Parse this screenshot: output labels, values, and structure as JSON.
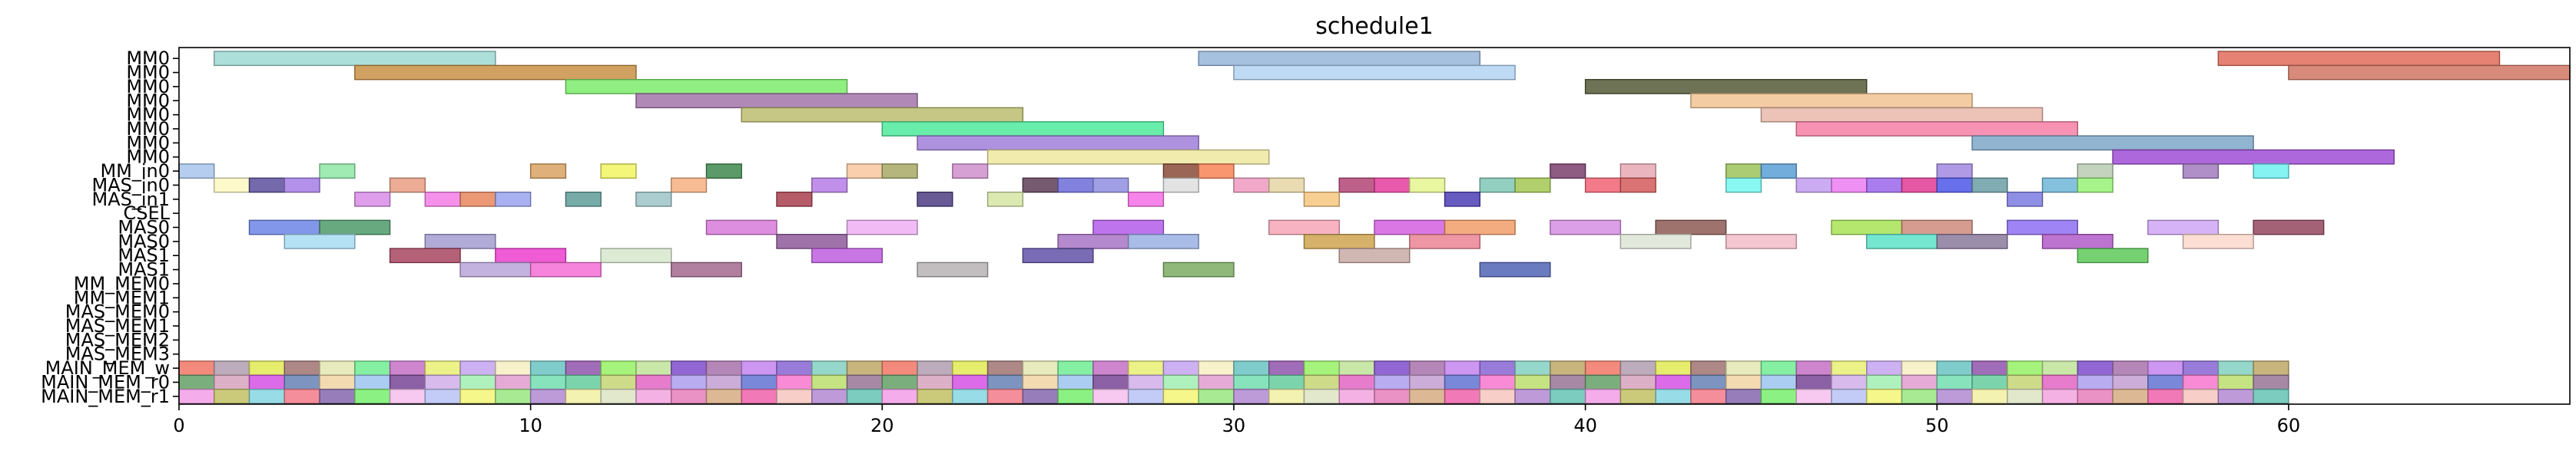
{
  "chart_data": {
    "type": "gantt",
    "title": "schedule1",
    "xlabel": "",
    "ylabel": "",
    "xlim": [
      0,
      68
    ],
    "xticks": [
      0,
      10,
      20,
      30,
      40,
      50,
      60
    ],
    "grid": false,
    "legend": "none",
    "rows": [
      "MM0",
      "MM0",
      "MM0",
      "MM0",
      "MM0",
      "MM0",
      "MM0",
      "MM0",
      "MM_in0",
      "MAS_in0",
      "MAS_in1",
      "CSEL",
      "MAS0",
      "MAS0",
      "MAS1",
      "MAS1",
      "MM_MEM0",
      "MM_MEM1",
      "MAS_MEM0",
      "MAS_MEM1",
      "MAS_MEM2",
      "MAS_MEM3",
      "MAIN_MEM_w",
      "MAIN_MEM_r0",
      "MAIN_MEM_r1"
    ],
    "tasks": [
      {
        "row": 0,
        "start": 1,
        "end": 9,
        "color": "#9ed9d2"
      },
      {
        "row": 0,
        "start": 29,
        "end": 37,
        "color": "#97b5db"
      },
      {
        "row": 0,
        "start": 58,
        "end": 66,
        "color": "#e06c5c"
      },
      {
        "row": 1,
        "start": 5,
        "end": 13,
        "color": "#c99045"
      },
      {
        "row": 1,
        "start": 30,
        "end": 38,
        "color": "#b3d3f3"
      },
      {
        "row": 1,
        "start": 60,
        "end": 68,
        "color": "#d27764"
      },
      {
        "row": 2,
        "start": 11,
        "end": 19,
        "color": "#7cec6b"
      },
      {
        "row": 2,
        "start": 40,
        "end": 48,
        "color": "#545a36"
      },
      {
        "row": 3,
        "start": 13,
        "end": 21,
        "color": "#a274a9"
      },
      {
        "row": 3,
        "start": 43,
        "end": 51,
        "color": "#f2c393"
      },
      {
        "row": 4,
        "start": 16,
        "end": 24,
        "color": "#bcbd6e"
      },
      {
        "row": 4,
        "start": 45,
        "end": 53,
        "color": "#e9b8a9"
      },
      {
        "row": 5,
        "start": 20,
        "end": 28,
        "color": "#4eea9c"
      },
      {
        "row": 5,
        "start": 46,
        "end": 54,
        "color": "#f77fa6"
      },
      {
        "row": 6,
        "start": 21,
        "end": 29,
        "color": "#a17fd9"
      },
      {
        "row": 6,
        "start": 51,
        "end": 59,
        "color": "#7ea7c9"
      },
      {
        "row": 7,
        "start": 23,
        "end": 31,
        "color": "#eee8a0"
      },
      {
        "row": 7,
        "start": 55,
        "end": 63,
        "color": "#9f4fd6"
      },
      {
        "row": 8,
        "start": 0,
        "end": 1,
        "color": "#a8c6ec"
      },
      {
        "row": 8,
        "start": 4,
        "end": 5,
        "color": "#8ee8a6"
      },
      {
        "row": 8,
        "start": 10,
        "end": 11,
        "color": "#d9a261"
      },
      {
        "row": 8,
        "start": 12,
        "end": 13,
        "color": "#f1f560"
      },
      {
        "row": 8,
        "start": 15,
        "end": 16,
        "color": "#3f8a4f"
      },
      {
        "row": 8,
        "start": 19,
        "end": 20,
        "color": "#f8c7a0"
      },
      {
        "row": 8,
        "start": 20,
        "end": 21,
        "color": "#a7a965"
      },
      {
        "row": 8,
        "start": 22,
        "end": 23,
        "color": "#cf8fce"
      },
      {
        "row": 8,
        "start": 28,
        "end": 29,
        "color": "#8a4b37"
      },
      {
        "row": 8,
        "start": 29,
        "end": 30,
        "color": "#f88256"
      },
      {
        "row": 8,
        "start": 39,
        "end": 40,
        "color": "#7a3f6c"
      },
      {
        "row": 8,
        "start": 41,
        "end": 42,
        "color": "#e6a8b3"
      },
      {
        "row": 8,
        "start": 44,
        "end": 45,
        "color": "#9ec35c"
      },
      {
        "row": 8,
        "start": 45,
        "end": 46,
        "color": "#5a9fd5"
      },
      {
        "row": 8,
        "start": 50,
        "end": 51,
        "color": "#a288e2"
      },
      {
        "row": 8,
        "start": 54,
        "end": 55,
        "color": "#b8cbb3"
      },
      {
        "row": 8,
        "start": 57,
        "end": 58,
        "color": "#a27bbf"
      },
      {
        "row": 8,
        "start": 59,
        "end": 60,
        "color": "#6ef1f0"
      },
      {
        "row": 9,
        "start": 1,
        "end": 2,
        "color": "#fdf8c2"
      },
      {
        "row": 9,
        "start": 2,
        "end": 3,
        "color": "#5a4f9c"
      },
      {
        "row": 9,
        "start": 3,
        "end": 4,
        "color": "#a57ee6"
      },
      {
        "row": 9,
        "start": 6,
        "end": 7,
        "color": "#e99d82"
      },
      {
        "row": 9,
        "start": 14,
        "end": 15,
        "color": "#f7b081"
      },
      {
        "row": 9,
        "start": 18,
        "end": 19,
        "color": "#b57de6"
      },
      {
        "row": 9,
        "start": 24,
        "end": 25,
        "color": "#5e3e57"
      },
      {
        "row": 9,
        "start": 25,
        "end": 26,
        "color": "#6c6cd8"
      },
      {
        "row": 9,
        "start": 26,
        "end": 27,
        "color": "#8f8ee0"
      },
      {
        "row": 9,
        "start": 28,
        "end": 29,
        "color": "#dfdede"
      },
      {
        "row": 9,
        "start": 30,
        "end": 31,
        "color": "#f09ac0"
      },
      {
        "row": 9,
        "start": 31,
        "end": 32,
        "color": "#e6d6a4"
      },
      {
        "row": 9,
        "start": 33,
        "end": 34,
        "color": "#b34575"
      },
      {
        "row": 9,
        "start": 34,
        "end": 35,
        "color": "#e63d9e"
      },
      {
        "row": 9,
        "start": 35,
        "end": 36,
        "color": "#e4f68f"
      },
      {
        "row": 9,
        "start": 37,
        "end": 38,
        "color": "#7fc7b5"
      },
      {
        "row": 9,
        "start": 38,
        "end": 39,
        "color": "#a3c853"
      },
      {
        "row": 9,
        "start": 40,
        "end": 41,
        "color": "#f16374"
      },
      {
        "row": 9,
        "start": 41,
        "end": 42,
        "color": "#d45b5b"
      },
      {
        "row": 9,
        "start": 44,
        "end": 45,
        "color": "#75f7f0"
      },
      {
        "row": 9,
        "start": 46,
        "end": 47,
        "color": "#c29ef0"
      },
      {
        "row": 9,
        "start": 47,
        "end": 48,
        "color": "#ec7df2"
      },
      {
        "row": 9,
        "start": 48,
        "end": 49,
        "color": "#9b66eb"
      },
      {
        "row": 9,
        "start": 49,
        "end": 50,
        "color": "#e03b94"
      },
      {
        "row": 9,
        "start": 50,
        "end": 51,
        "color": "#4e57e8"
      },
      {
        "row": 9,
        "start": 51,
        "end": 52,
        "color": "#6a9ea4"
      },
      {
        "row": 9,
        "start": 53,
        "end": 54,
        "color": "#6fb6d6"
      },
      {
        "row": 9,
        "start": 54,
        "end": 55,
        "color": "#96f275"
      },
      {
        "row": 10,
        "start": 5,
        "end": 6,
        "color": "#d88de8"
      },
      {
        "row": 10,
        "start": 7,
        "end": 8,
        "color": "#f47ee8"
      },
      {
        "row": 10,
        "start": 8,
        "end": 9,
        "color": "#e8865d"
      },
      {
        "row": 10,
        "start": 9,
        "end": 10,
        "color": "#99a3ee"
      },
      {
        "row": 10,
        "start": 11,
        "end": 12,
        "color": "#5e9c99"
      },
      {
        "row": 10,
        "start": 13,
        "end": 14,
        "color": "#9ec4c8"
      },
      {
        "row": 10,
        "start": 17,
        "end": 18,
        "color": "#a8404e"
      },
      {
        "row": 10,
        "start": 21,
        "end": 22,
        "color": "#4d3d82"
      },
      {
        "row": 10,
        "start": 23,
        "end": 24,
        "color": "#d6e6a4"
      },
      {
        "row": 10,
        "start": 27,
        "end": 28,
        "color": "#f56fe6"
      },
      {
        "row": 10,
        "start": 32,
        "end": 33,
        "color": "#f7c780"
      },
      {
        "row": 10,
        "start": 36,
        "end": 37,
        "color": "#4c3db5"
      },
      {
        "row": 10,
        "start": 52,
        "end": 53,
        "color": "#7b7be0"
      },
      {
        "row": 12,
        "start": 2,
        "end": 4,
        "color": "#6c84e6"
      },
      {
        "row": 12,
        "start": 4,
        "end": 6,
        "color": "#4e9a6a"
      },
      {
        "row": 12,
        "start": 15,
        "end": 17,
        "color": "#d77ad8"
      },
      {
        "row": 12,
        "start": 19,
        "end": 21,
        "color": "#eeb0f5"
      },
      {
        "row": 12,
        "start": 26,
        "end": 28,
        "color": "#b25cea"
      },
      {
        "row": 12,
        "start": 31,
        "end": 33,
        "color": "#f7a6b8"
      },
      {
        "row": 12,
        "start": 34,
        "end": 36,
        "color": "#d45fe0"
      },
      {
        "row": 12,
        "start": 36,
        "end": 38,
        "color": "#f19e68"
      },
      {
        "row": 12,
        "start": 39,
        "end": 41,
        "color": "#d58ee3"
      },
      {
        "row": 12,
        "start": 42,
        "end": 44,
        "color": "#8e5a54"
      },
      {
        "row": 12,
        "start": 47,
        "end": 49,
        "color": "#a8e255"
      },
      {
        "row": 12,
        "start": 49,
        "end": 51,
        "color": "#cf8b7c"
      },
      {
        "row": 12,
        "start": 52,
        "end": 54,
        "color": "#8d6ef2"
      },
      {
        "row": 12,
        "start": 56,
        "end": 58,
        "color": "#cfa6f5"
      },
      {
        "row": 12,
        "start": 59,
        "end": 61,
        "color": "#93465e"
      },
      {
        "row": 13,
        "start": 3,
        "end": 5,
        "color": "#a8dcf3"
      },
      {
        "row": 13,
        "start": 7,
        "end": 9,
        "color": "#a29cd0"
      },
      {
        "row": 13,
        "start": 17,
        "end": 19,
        "color": "#8e5a9a"
      },
      {
        "row": 13,
        "start": 25,
        "end": 27,
        "color": "#a874c4"
      },
      {
        "row": 13,
        "start": 27,
        "end": 29,
        "color": "#9ab0e4"
      },
      {
        "row": 13,
        "start": 32,
        "end": 34,
        "color": "#cfa34f"
      },
      {
        "row": 13,
        "start": 35,
        "end": 37,
        "color": "#eb8494"
      },
      {
        "row": 13,
        "start": 41,
        "end": 43,
        "color": "#dde5d6"
      },
      {
        "row": 13,
        "start": 44,
        "end": 46,
        "color": "#f2bcc8"
      },
      {
        "row": 13,
        "start": 48,
        "end": 50,
        "color": "#5de3c9"
      },
      {
        "row": 13,
        "start": 50,
        "end": 52,
        "color": "#8a7a9c"
      },
      {
        "row": 13,
        "start": 53,
        "end": 55,
        "color": "#b25ac8"
      },
      {
        "row": 13,
        "start": 57,
        "end": 59,
        "color": "#fbd8cb"
      },
      {
        "row": 14,
        "start": 6,
        "end": 8,
        "color": "#a84660"
      },
      {
        "row": 14,
        "start": 9,
        "end": 11,
        "color": "#ec40cf"
      },
      {
        "row": 14,
        "start": 12,
        "end": 14,
        "color": "#d7e8cd"
      },
      {
        "row": 14,
        "start": 18,
        "end": 20,
        "color": "#c05ee0"
      },
      {
        "row": 14,
        "start": 24,
        "end": 26,
        "color": "#6351a8"
      },
      {
        "row": 14,
        "start": 33,
        "end": 35,
        "color": "#c9aaa4"
      },
      {
        "row": 14,
        "start": 54,
        "end": 56,
        "color": "#5ec95a"
      },
      {
        "row": 15,
        "start": 8,
        "end": 10,
        "color": "#b9a4d9"
      },
      {
        "row": 15,
        "start": 10,
        "end": 12,
        "color": "#f46fd6"
      },
      {
        "row": 15,
        "start": 14,
        "end": 16,
        "color": "#a2688e"
      },
      {
        "row": 15,
        "start": 21,
        "end": 23,
        "color": "#b7b3b4"
      },
      {
        "row": 15,
        "start": 28,
        "end": 30,
        "color": "#7dac64"
      },
      {
        "row": 15,
        "start": 37,
        "end": 39,
        "color": "#5164b5"
      }
    ],
    "memory_rows": {
      "MAIN_MEM_w": {
        "row": 22,
        "start": 0,
        "end": 60
      },
      "MAIN_MEM_r0": {
        "row": 23,
        "start": 0,
        "end": 60
      },
      "MAIN_MEM_r1": {
        "row": 24,
        "start": 0,
        "end": 60
      }
    },
    "memory_palette": [
      "#f27d6e",
      "#bfe076",
      "#f06ab0",
      "#b5a3b5",
      "#9d7c9b",
      "#f7c9c3",
      "#e3ea5c",
      "#6ca66f",
      "#b88fd4",
      "#a57a7a",
      "#d8a7c0",
      "#6ec7b8",
      "#e4e8b5",
      "#d75be6",
      "#f3a3e8",
      "#78ed99",
      "#6e88b8",
      "#c5c46b",
      "#c879c9",
      "#f3d6a9",
      "#8cd8e3",
      "#eaf07b",
      "#a1c8f0",
      "#f48290",
      "#c9a8f1",
      "#7f4f9a",
      "#8c70b3",
      "#f6f0c6",
      "#d4b3ea",
      "#7fef75",
      "#72c6c8",
      "#a6efb5",
      "#f6c3f0",
      "#965db1",
      "#e3a1d3",
      "#bcc6f5",
      "#9bf26c",
      "#7ae0b5",
      "#f4f67d",
      "#c3e49e",
      "#6ecfa4",
      "#9fe888",
      "#8657ce",
      "#c9d77b",
      "#b68fd4",
      "#ad79b0",
      "#e36ec5",
      "#f2f1a8",
      "#c78bf0",
      "#b2a3ee",
      "#dfe6c6",
      "#8e6ed6",
      "#c6a3d5",
      "#f3a9e0",
      "#8bd3c7",
      "#6c7bd6",
      "#e885c0",
      "#c2ad70",
      "#f77dd2",
      "#d9b08a"
    ]
  }
}
